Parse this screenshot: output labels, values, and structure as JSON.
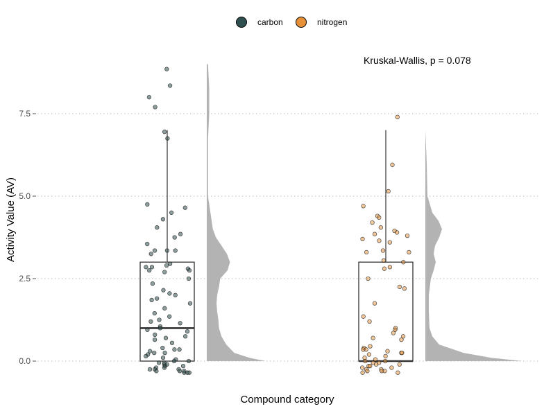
{
  "chart_data": {
    "type": "box",
    "subtype": "raincloud (half-violin + boxplot + jittered points)",
    "title": "",
    "xlabel": "Compound category",
    "ylabel": "Activity Value (AV)",
    "ylim": [
      -0.5,
      9.0
    ],
    "yticks": [
      0.0,
      2.5,
      5.0,
      7.5
    ],
    "ytick_labels": [
      "0.0",
      "2.5",
      "5.0",
      "7.5"
    ],
    "grid": "horizontal dotted at major ticks",
    "legend": {
      "position": "top",
      "entries": [
        "carbon",
        "nitrogen"
      ]
    },
    "annotation": "Kruskal-Wallis, p = 0.078",
    "colors": {
      "carbon": "#2f4f4f",
      "nitrogen": "#e69138",
      "density": "#b3b3b3",
      "box": "#333333"
    },
    "series": [
      {
        "name": "carbon",
        "box": {
          "whisker_low": 0.0,
          "q1": 0.0,
          "median": 1.0,
          "q3": 3.0,
          "whisker_high": 7.0
        },
        "outliers": [
          8.85,
          8.35,
          8.0,
          7.7,
          6.95,
          6.75
        ],
        "points": [
          8.85,
          8.35,
          8.0,
          7.7,
          6.95,
          6.75,
          4.75,
          4.65,
          4.5,
          4.3,
          4.05,
          3.85,
          3.75,
          3.55,
          3.35,
          3.35,
          3.35,
          3.25,
          2.95,
          2.9,
          2.85,
          2.85,
          2.8,
          2.75,
          2.75,
          2.7,
          2.5,
          2.35,
          2.15,
          2.05,
          2.0,
          1.9,
          1.85,
          1.75,
          1.6,
          1.45,
          1.35,
          1.25,
          1.2,
          1.15,
          1.05,
          1.0,
          0.95,
          0.9,
          0.8,
          0.75,
          0.7,
          0.65,
          0.55,
          0.4,
          0.35,
          0.35,
          0.3,
          0.25,
          0.25,
          0.2,
          0.15,
          0.1,
          0.05,
          0.0,
          0.0,
          -0.05,
          -0.05,
          -0.1,
          -0.1,
          -0.15,
          -0.15,
          -0.2,
          -0.2,
          -0.25,
          -0.25,
          -0.25,
          -0.3,
          -0.3,
          -0.3,
          -0.35,
          -0.35,
          -0.35
        ],
        "density": [
          [
            0.0,
            0.96
          ],
          [
            0.1,
            0.7
          ],
          [
            0.25,
            0.45
          ],
          [
            0.5,
            0.32
          ],
          [
            0.75,
            0.24
          ],
          [
            1.0,
            0.2
          ],
          [
            1.25,
            0.19
          ],
          [
            1.5,
            0.17
          ],
          [
            1.75,
            0.16
          ],
          [
            2.0,
            0.17
          ],
          [
            2.25,
            0.2
          ],
          [
            2.5,
            0.22
          ],
          [
            2.75,
            0.34
          ],
          [
            3.0,
            0.38
          ],
          [
            3.25,
            0.33
          ],
          [
            3.5,
            0.24
          ],
          [
            3.75,
            0.15
          ],
          [
            4.0,
            0.1
          ],
          [
            4.5,
            0.06
          ],
          [
            5.0,
            0.02
          ],
          [
            5.75,
            0.02
          ],
          [
            6.75,
            0.02
          ],
          [
            7.5,
            0.04
          ],
          [
            8.25,
            0.04
          ],
          [
            9.0,
            0.02
          ]
        ]
      },
      {
        "name": "nitrogen",
        "box": {
          "whisker_low": 0.0,
          "q1": 0.0,
          "median": 0.0,
          "q3": 3.0,
          "whisker_high": 7.0
        },
        "outliers": [
          7.4
        ],
        "points": [
          7.4,
          5.95,
          5.15,
          4.7,
          4.4,
          4.35,
          4.2,
          4.05,
          3.95,
          3.9,
          3.85,
          3.8,
          3.7,
          3.65,
          3.6,
          3.35,
          3.3,
          3.3,
          3.05,
          3.0,
          2.85,
          2.8,
          2.5,
          2.25,
          2.2,
          1.75,
          1.35,
          1.2,
          1.0,
          0.95,
          0.85,
          0.75,
          0.7,
          0.65,
          0.45,
          0.4,
          0.35,
          0.35,
          0.3,
          0.25,
          0.25,
          0.2,
          0.15,
          0.1,
          0.05,
          0.0,
          0.0,
          -0.05,
          -0.05,
          -0.1,
          -0.1,
          -0.15,
          -0.15,
          -0.2,
          -0.2,
          -0.25,
          -0.25,
          -0.3,
          -0.3,
          -0.3,
          -0.35,
          -0.35
        ],
        "density": [
          [
            0.0,
            1.4
          ],
          [
            0.1,
            0.95
          ],
          [
            0.25,
            0.55
          ],
          [
            0.5,
            0.2
          ],
          [
            0.75,
            0.1
          ],
          [
            1.0,
            0.06
          ],
          [
            1.5,
            0.05
          ],
          [
            2.0,
            0.05
          ],
          [
            2.5,
            0.08
          ],
          [
            2.75,
            0.12
          ],
          [
            3.0,
            0.15
          ],
          [
            3.25,
            0.12
          ],
          [
            3.5,
            0.14
          ],
          [
            3.75,
            0.2
          ],
          [
            4.0,
            0.24
          ],
          [
            4.25,
            0.19
          ],
          [
            4.5,
            0.1
          ],
          [
            5.0,
            0.03
          ],
          [
            6.0,
            0.02
          ],
          [
            7.0,
            0.0
          ]
        ]
      }
    ]
  }
}
